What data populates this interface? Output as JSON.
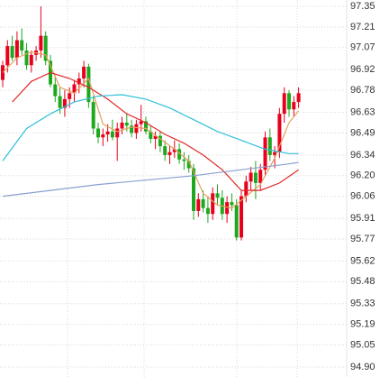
{
  "chart_data": {
    "type": "candlestick",
    "ylim": [
      94.9,
      97.35
    ],
    "yticks": [
      {
        "value": 97.35,
        "label": "97.35"
      },
      97.21,
      97.07,
      96.92,
      96.78,
      96.63,
      96.49,
      96.34,
      {
        "value": 96.2,
        "label": "96.20"
      },
      96.06,
      95.91,
      95.77,
      95.62,
      95.48,
      95.33,
      95.19,
      95.05,
      {
        "value": 94.9,
        "label": "94.90"
      }
    ],
    "grid": true,
    "up_color": "#e8001c",
    "down_color": "#1fa81f",
    "open": [
      96.85,
      96.95,
      97.08,
      97.0,
      97.12,
      97.05,
      96.95,
      97.02,
      97.05,
      97.15,
      96.98,
      96.82,
      96.74,
      96.66,
      96.72,
      96.76,
      96.82,
      96.86,
      96.94,
      96.7,
      96.52,
      96.46,
      96.48,
      96.5,
      96.46,
      96.52,
      96.56,
      96.54,
      96.49,
      96.55,
      96.57,
      96.5,
      96.45,
      96.47,
      96.4,
      96.34,
      96.36,
      96.38,
      96.31,
      96.3,
      96.25,
      95.96,
      96.04,
      95.98,
      95.94,
      96.08,
      96.05,
      95.94,
      96.02,
      96.0,
      95.78,
      96.06,
      96.16,
      96.22,
      96.15,
      96.24,
      96.46,
      96.34,
      96.36,
      96.62,
      96.76,
      96.65,
      96.7
    ],
    "high": [
      96.98,
      97.12,
      97.15,
      97.18,
      97.2,
      97.1,
      97.05,
      97.08,
      97.35,
      97.18,
      97.02,
      96.88,
      96.8,
      96.78,
      96.8,
      96.85,
      96.9,
      96.98,
      96.96,
      96.74,
      96.56,
      96.52,
      96.55,
      96.58,
      96.56,
      96.6,
      96.62,
      96.58,
      96.58,
      96.68,
      96.6,
      96.54,
      96.5,
      96.5,
      96.44,
      96.4,
      96.44,
      96.42,
      96.36,
      96.34,
      96.28,
      96.08,
      96.1,
      96.06,
      96.12,
      96.14,
      96.1,
      96.06,
      96.08,
      96.04,
      96.1,
      96.2,
      96.26,
      96.3,
      96.28,
      96.5,
      96.52,
      96.4,
      96.66,
      96.8,
      96.78,
      96.74,
      96.8
    ],
    "low": [
      96.8,
      96.9,
      96.98,
      96.95,
      97.02,
      96.92,
      96.9,
      96.98,
      97.0,
      96.95,
      96.8,
      96.7,
      96.62,
      96.6,
      96.66,
      96.7,
      96.76,
      96.8,
      96.66,
      96.48,
      96.42,
      96.4,
      96.43,
      96.44,
      96.3,
      96.48,
      96.5,
      96.46,
      96.45,
      96.5,
      96.48,
      96.42,
      96.38,
      96.36,
      96.3,
      96.28,
      96.32,
      96.28,
      96.24,
      96.22,
      95.9,
      95.92,
      95.95,
      95.88,
      95.9,
      96.0,
      95.9,
      95.88,
      95.96,
      95.76,
      95.76,
      96.02,
      96.1,
      96.04,
      96.1,
      96.2,
      96.3,
      96.25,
      96.32,
      96.56,
      96.6,
      96.6,
      96.66
    ],
    "close": [
      96.95,
      97.08,
      97.0,
      97.12,
      97.05,
      96.95,
      97.02,
      97.05,
      97.15,
      96.98,
      96.82,
      96.74,
      96.66,
      96.72,
      96.76,
      96.82,
      96.86,
      96.94,
      96.7,
      96.52,
      96.46,
      96.48,
      96.5,
      96.46,
      96.52,
      96.56,
      96.54,
      96.49,
      96.55,
      96.57,
      96.5,
      96.45,
      96.47,
      96.4,
      96.34,
      96.36,
      96.38,
      96.31,
      96.3,
      96.25,
      95.96,
      96.04,
      95.98,
      95.94,
      96.08,
      96.05,
      95.94,
      96.02,
      96.0,
      95.78,
      96.06,
      96.16,
      96.22,
      96.15,
      96.24,
      96.46,
      96.34,
      96.36,
      96.62,
      96.76,
      96.65,
      96.7,
      96.76
    ],
    "series": [
      {
        "color": "#e6a060",
        "x": [
          0,
          3,
          6,
          9,
          12,
          15,
          18,
          21,
          24,
          27,
          30,
          33,
          36,
          39,
          42,
          45,
          48,
          51,
          54,
          57,
          60,
          62
        ],
        "values": [
          96.9,
          97.0,
          97.04,
          97.02,
          96.8,
          96.76,
          96.86,
          96.55,
          96.5,
          96.53,
          96.52,
          96.45,
          96.38,
          96.3,
          96.08,
          96.0,
          95.98,
          96.06,
          96.14,
          96.32,
          96.56,
          96.64
        ]
      },
      {
        "color": "#e02828",
        "x": [
          2,
          6,
          10,
          14,
          18,
          22,
          26,
          30,
          34,
          38,
          42,
          46,
          50,
          54,
          58,
          62
        ],
        "values": [
          96.7,
          96.84,
          96.9,
          96.86,
          96.8,
          96.72,
          96.62,
          96.56,
          96.48,
          96.42,
          96.34,
          96.24,
          96.1,
          96.1,
          96.15,
          96.24
        ]
      },
      {
        "color": "#30c0d8",
        "x": [
          0,
          5,
          10,
          15,
          20,
          25,
          30,
          35,
          40,
          45,
          50,
          55,
          60,
          62
        ],
        "values": [
          96.3,
          96.52,
          96.62,
          96.7,
          96.74,
          96.75,
          96.72,
          96.66,
          96.58,
          96.5,
          96.44,
          96.38,
          96.35,
          96.35
        ]
      },
      {
        "color": "#8aa0d0",
        "x": [
          0,
          10,
          20,
          30,
          40,
          50,
          60,
          62
        ],
        "values": [
          96.06,
          96.1,
          96.14,
          96.17,
          96.2,
          96.24,
          96.28,
          96.29
        ]
      }
    ]
  }
}
